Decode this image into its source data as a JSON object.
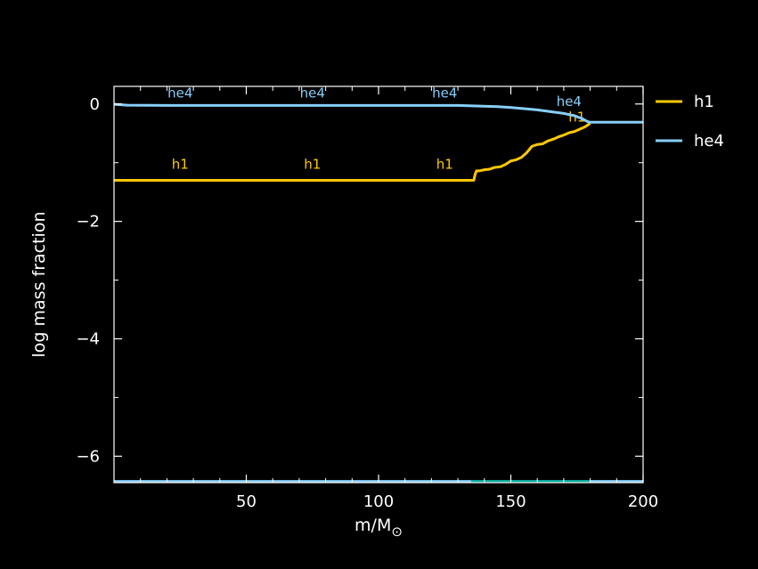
{
  "chart_data": {
    "type": "line",
    "title": "",
    "xlabel": "m/M",
    "xlabel_subscript": "⊙",
    "ylabel": "log mass fraction",
    "xlim": [
      0,
      200
    ],
    "ylim": [
      -6.45,
      0.3
    ],
    "x_ticks": [
      {
        "value": 50,
        "label": "50"
      },
      {
        "value": 100,
        "label": "100"
      },
      {
        "value": 150,
        "label": "150"
      },
      {
        "value": 200,
        "label": "200"
      }
    ],
    "y_ticks": [
      {
        "value": 0,
        "label": "0"
      },
      {
        "value": -2,
        "label": "−2"
      },
      {
        "value": -4,
        "label": "−4"
      },
      {
        "value": -6,
        "label": "−6"
      }
    ],
    "x_minor_step": 10,
    "y_minor_step": 1,
    "grid": false,
    "legend_position": "right-outside-top",
    "series": [
      {
        "name": "h1",
        "color": "#ffc800",
        "x": [
          0,
          20,
          50,
          80,
          100,
          120,
          136,
          136.5,
          137,
          138,
          140,
          142,
          144,
          146,
          148,
          150,
          152,
          154,
          156,
          158,
          160,
          162,
          164,
          166,
          168,
          170,
          172,
          174,
          176,
          178,
          180
        ],
        "y": [
          -1.3,
          -1.3,
          -1.3,
          -1.3,
          -1.3,
          -1.3,
          -1.3,
          -1.2,
          -1.14,
          -1.14,
          -1.12,
          -1.11,
          -1.08,
          -1.07,
          -1.03,
          -0.97,
          -0.95,
          -0.91,
          -0.83,
          -0.72,
          -0.69,
          -0.68,
          -0.63,
          -0.6,
          -0.56,
          -0.53,
          -0.49,
          -0.47,
          -0.43,
          -0.39,
          -0.33
        ],
        "inline_labels": [
          {
            "x": 25,
            "y": -1.1,
            "text": "h1"
          },
          {
            "x": 75,
            "y": -1.1,
            "text": "h1"
          },
          {
            "x": 125,
            "y": -1.1,
            "text": "h1"
          },
          {
            "x": 175,
            "y": -0.3,
            "text": "h1"
          }
        ]
      },
      {
        "name": "he4",
        "color": "#87cefa",
        "x": [
          0,
          5,
          20,
          50,
          100,
          130,
          138,
          145,
          150,
          155,
          160,
          165,
          170,
          174,
          177,
          179,
          180,
          190,
          200
        ],
        "y": [
          -0.005,
          -0.02,
          -0.025,
          -0.025,
          -0.025,
          -0.025,
          -0.035,
          -0.045,
          -0.06,
          -0.08,
          -0.1,
          -0.13,
          -0.16,
          -0.2,
          -0.25,
          -0.3,
          -0.31,
          -0.31,
          -0.31
        ],
        "inline_labels": [
          {
            "x": 25,
            "y": 0.11,
            "text": "he4"
          },
          {
            "x": 75,
            "y": 0.11,
            "text": "he4"
          },
          {
            "x": 125,
            "y": 0.11,
            "text": "he4"
          },
          {
            "x": 172,
            "y": -0.03,
            "text": "he4"
          }
        ]
      }
    ],
    "floor_line": {
      "y": -6.43,
      "color": "#87cefa",
      "highlight_x": [
        135,
        180
      ],
      "highlight_color": "#00a897"
    }
  }
}
